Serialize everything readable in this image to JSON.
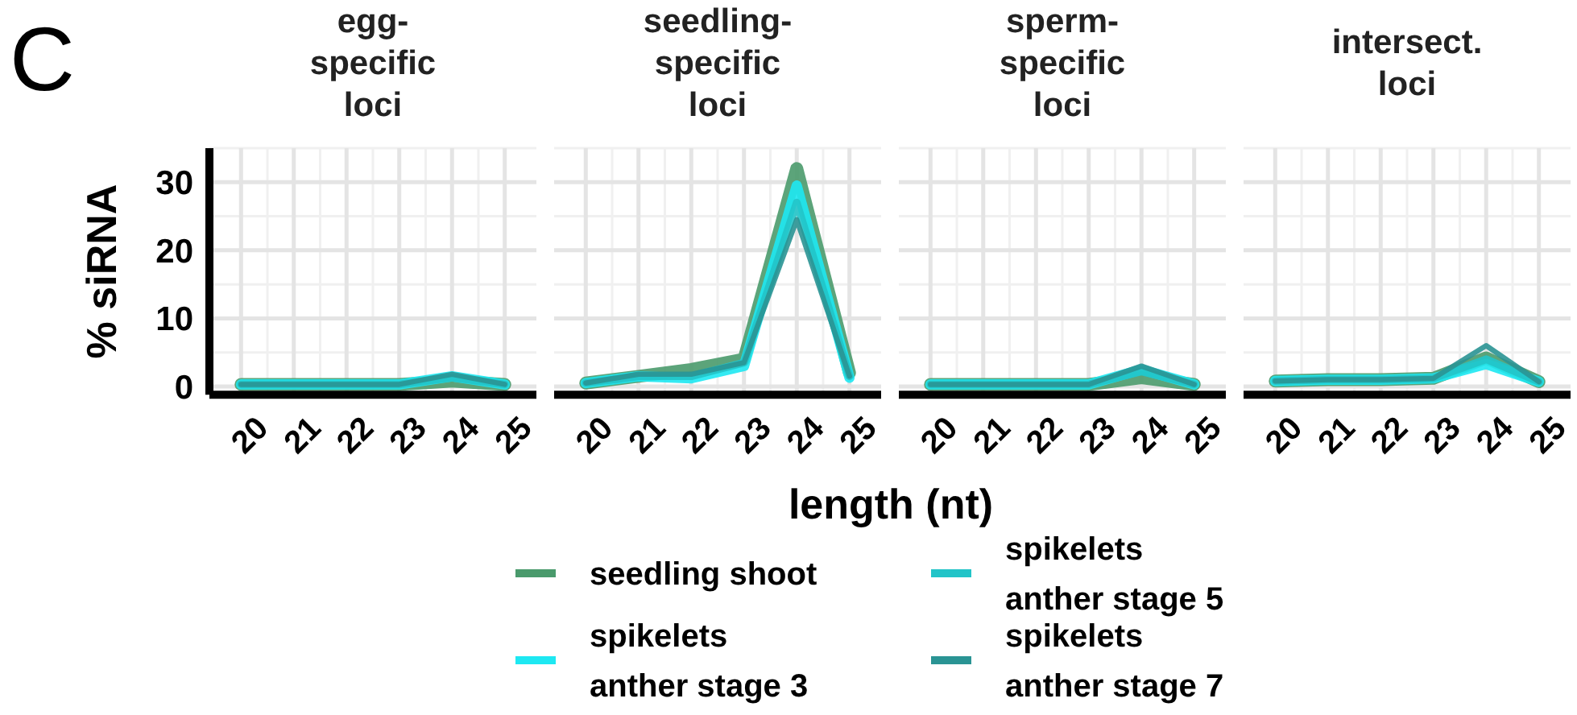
{
  "chart_data": [
    {
      "type": "line",
      "title": "egg-\nspecific\nloci",
      "ylabel": "% siRNA",
      "annotations": [
        "C"
      ],
      "x": [
        20,
        21,
        22,
        23,
        24,
        25
      ],
      "xlim": [
        19.4,
        25.6
      ],
      "xticks": [
        20,
        21,
        22,
        23,
        24,
        25
      ],
      "ylim": [
        -1.2,
        35
      ],
      "yticks": [
        0,
        10,
        20,
        30
      ],
      "grid": true,
      "series": [
        {
          "color": "#4a9a6c",
          "values": [
            0.3,
            0.3,
            0.3,
            0.3,
            0.8,
            0.3
          ]
        },
        {
          "color": "#1ee8f2",
          "values": [
            0.3,
            0.3,
            0.3,
            0.3,
            1.5,
            0.3
          ]
        },
        {
          "color": "#22c4c8",
          "values": [
            0.3,
            0.3,
            0.3,
            0.3,
            1.3,
            0.3
          ]
        },
        {
          "color": "#2a9494",
          "values": [
            0.3,
            0.3,
            0.3,
            0.3,
            1.8,
            0.3
          ]
        }
      ]
    },
    {
      "type": "line",
      "title": "seedling-\nspecific\nloci",
      "xlabel": "length (nt)",
      "legend": "bottom",
      "x": [
        20,
        21,
        22,
        23,
        24,
        25
      ],
      "xlim": [
        19.4,
        25.6
      ],
      "xticks": [
        20,
        21,
        22,
        23,
        24,
        25
      ],
      "ylim": [
        -1.2,
        35
      ],
      "yticks": [
        0,
        10,
        20,
        30
      ],
      "grid": true,
      "tick_labels": "x",
      "series": [
        {
          "name": "seedling shoot",
          "color": "#4a9a6c",
          "values": [
            0.5,
            1.5,
            2.5,
            4,
            32,
            2
          ]
        },
        {
          "name": "spikelets\nanther stage 3",
          "color": "#1ee8f2",
          "values": [
            0.5,
            1.5,
            1.2,
            3,
            29.5,
            1.3
          ]
        },
        {
          "name": "spikelets\nanther stage 5",
          "color": "#22c4c8",
          "values": [
            0.5,
            1.5,
            1.5,
            3.5,
            27,
            1.5
          ]
        },
        {
          "name": "spikelets\nanther stage 7",
          "color": "#2a9494",
          "values": [
            0.5,
            1.8,
            1.8,
            3.5,
            24.5,
            1.5
          ]
        }
      ]
    },
    {
      "type": "line",
      "title": "sperm-\nspecific\nloci",
      "x": [
        20,
        21,
        22,
        23,
        24,
        25
      ],
      "xlim": [
        19.4,
        25.6
      ],
      "xticks": [
        20,
        21,
        22,
        23,
        24,
        25
      ],
      "ylim": [
        -1.2,
        35
      ],
      "yticks": [
        0,
        10,
        20,
        30
      ],
      "grid": true,
      "tick_labels": "x",
      "series": [
        {
          "color": "#4a9a6c",
          "values": [
            0.3,
            0.3,
            0.3,
            0.3,
            1.3,
            0.3
          ]
        },
        {
          "color": "#1ee8f2",
          "values": [
            0.3,
            0.3,
            0.3,
            0.3,
            2.5,
            0.3
          ]
        },
        {
          "color": "#22c4c8",
          "values": [
            0.3,
            0.3,
            0.3,
            0.3,
            2.2,
            0.3
          ]
        },
        {
          "color": "#2a9494",
          "values": [
            0.3,
            0.3,
            0.3,
            0.3,
            3,
            0.3
          ]
        }
      ]
    },
    {
      "type": "line",
      "title": "intersect.\nloci",
      "x": [
        20,
        21,
        22,
        23,
        24,
        25
      ],
      "xlim": [
        19.4,
        25.6
      ],
      "xticks": [
        20,
        21,
        22,
        23,
        24,
        25
      ],
      "ylim": [
        -1.2,
        35
      ],
      "yticks": [
        0,
        10,
        20,
        30
      ],
      "grid": true,
      "tick_labels": "x",
      "series": [
        {
          "color": "#4a9a6c",
          "values": [
            0.8,
            1,
            1,
            1.2,
            4.2,
            0.7
          ]
        },
        {
          "color": "#1ee8f2",
          "values": [
            0.8,
            1,
            1,
            1.2,
            3.3,
            0.7
          ]
        },
        {
          "color": "#22c4c8",
          "values": [
            0.8,
            1,
            1,
            1.2,
            4,
            0.7
          ]
        },
        {
          "color": "#2a9494",
          "values": [
            0.8,
            1,
            1,
            1.2,
            6,
            0.7
          ]
        }
      ]
    }
  ]
}
